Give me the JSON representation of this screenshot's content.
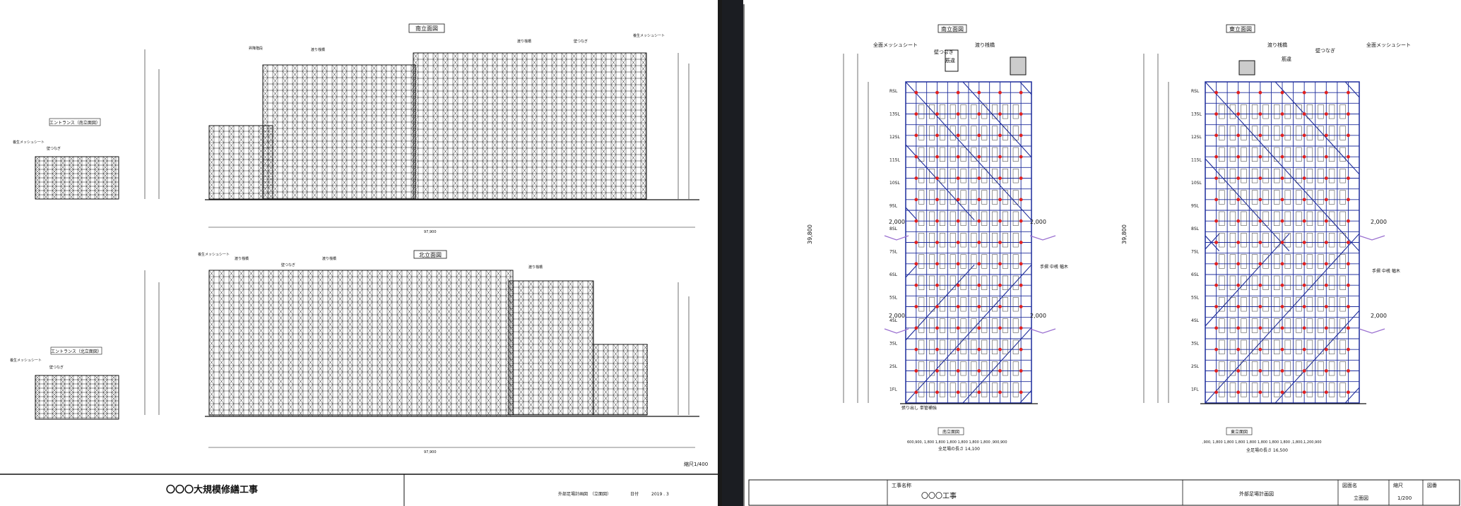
{
  "left_sheet": {
    "view_south_label": "南立面図",
    "view_north_label": "北立面図",
    "entrance_south_label": "エントランス（南立面図）",
    "entrance_north_label": "エントランス（北立面図）",
    "mesh_sheet": "養生メッシュシート",
    "wall_tie": "壁つなぎ",
    "stair_tower": "昇降階段",
    "bridge_stage": "渡り桟橋",
    "overall_length": "97,900",
    "scale": "縮尺1/400",
    "project_title": "〇〇〇大規模修繕工事",
    "drawing_name": "外部足場計画図　（立面図）",
    "date_label": "日付",
    "date_value": "2019 . 3"
  },
  "right_sheet": {
    "south_title": "南立面図",
    "east_title": "東立面図",
    "mesh_sheet": "全面メッシュシート",
    "wall_tie": "壁つなぎ",
    "bridge_stage": "渡り桟橋",
    "brace": "筋違",
    "dim_2000": "2,000",
    "height_total": "39,800",
    "south_bottom_label": "南立面図",
    "east_bottom_label": "東立面図",
    "south_length": "全足場の長さ 14,100",
    "east_length": "全足場の長さ 16,500",
    "south_dims": "600,900, 1,800  1,800  1,800  1,800  1,800  1,800 ,900,900",
    "east_dims": ",900, 1,800  1,800  1,800  1,800  1,800  1,800  1,800 ,1,800,1,200,900",
    "handrail_note": "手摺\n中桟\n幅木",
    "overhang_note": "張り出し\n単管補強",
    "title_project_label": "工事名称",
    "title_project": "〇〇〇工事",
    "title_drawing": "外部足場計画図",
    "title_name_label": "図面名",
    "title_name": "立面図",
    "title_scale_label": "縮尺",
    "title_scale": "1/200",
    "title_number_label": "図番",
    "floor_labels": [
      "RSL",
      "13SL",
      "12SL",
      "11SL",
      "10SL",
      "9SL",
      "8SL",
      "7SL",
      "6SL",
      "5SL",
      "4SL",
      "3SL",
      "2SL",
      "1FL"
    ]
  },
  "colors": {
    "ink": "#111111",
    "scaffold_blue": "#1d2c9c",
    "tie_red": "#e02020",
    "net_purple": "#9a6fd0",
    "divider": "#1b1d22"
  }
}
